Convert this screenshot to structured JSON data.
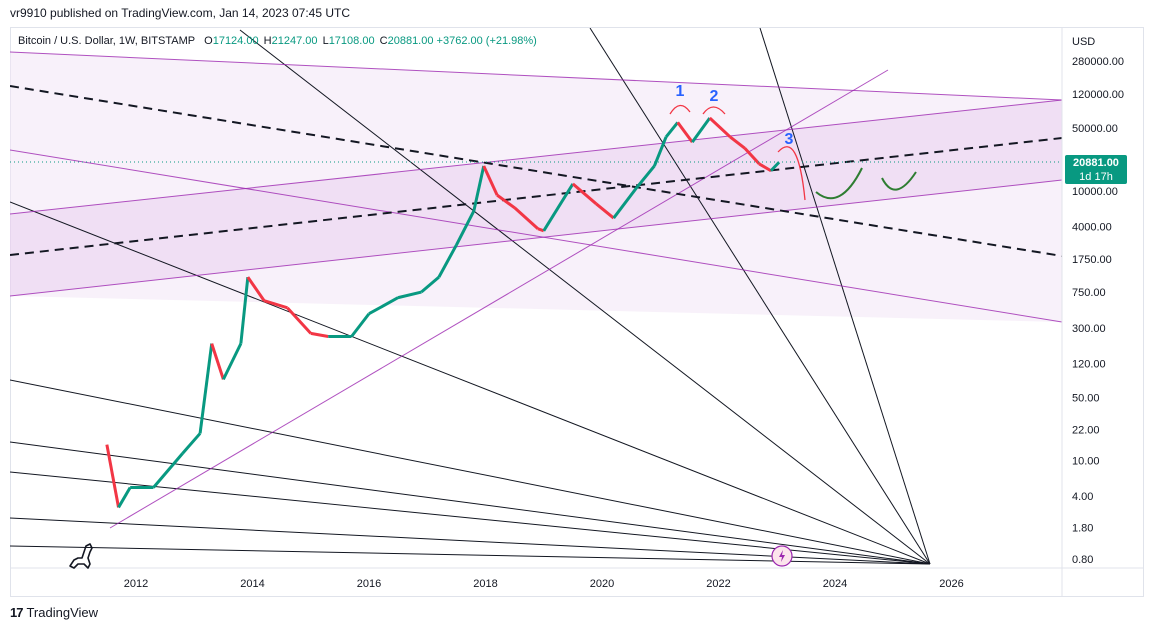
{
  "header": {
    "published": "vr9910 published on TradingView.com, Jan 14, 2023 07:45 UTC"
  },
  "legend": {
    "symbol": "Bitcoin / U.S. Dollar, 1W, BITSTAMP",
    "o_label": "O",
    "o_value": "17124.00",
    "h_label": "H",
    "h_value": "21247.00",
    "l_label": "L",
    "l_value": "17108.00",
    "c_label": "C",
    "c_value": "20881.00",
    "change": "+3762.00 (+21.98%)"
  },
  "price_tag": {
    "price": "20881.00",
    "countdown": "1d 17h"
  },
  "footer": {
    "brand": "TradingView"
  },
  "colors": {
    "up": "#089981",
    "down": "#f23645",
    "channel": "#9c27b0",
    "fan": "#131722",
    "annotation_blue": "#2962ff",
    "annotation_red": "#f23645",
    "annotation_green": "#2e7d32"
  },
  "chart_data": {
    "type": "line",
    "axis_unit": "USD",
    "y_scale": "log",
    "x_ticks": [
      "2012",
      "2014",
      "2016",
      "2018",
      "2020",
      "2022",
      "2024",
      "2026"
    ],
    "y_ticks": [
      "280000.00",
      "120000.00",
      "50000.00",
      "20000.00",
      "10000.00",
      "4000.00",
      "1750.00",
      "750.00",
      "300.00",
      "120.00",
      "50.00",
      "22.00",
      "10.00",
      "4.00",
      "1.80",
      "0.80"
    ],
    "price_series": {
      "x": [
        2011.5,
        2011.7,
        2011.9,
        2012.3,
        2012.8,
        2013.1,
        2013.3,
        2013.5,
        2013.8,
        2013.92,
        2014.2,
        2014.6,
        2015.0,
        2015.3,
        2015.7,
        2016.0,
        2016.5,
        2016.9,
        2017.2,
        2017.5,
        2017.8,
        2017.97,
        2018.2,
        2018.5,
        2018.9,
        2019.0,
        2019.5,
        2019.9,
        2020.2,
        2020.6,
        2020.9,
        2021.1,
        2021.3,
        2021.55,
        2021.85,
        2022.2,
        2022.45,
        2022.7,
        2022.9,
        2023.04
      ],
      "y": [
        15,
        3,
        5,
        5,
        12,
        20,
        200,
        80,
        200,
        1100,
        600,
        500,
        260,
        240,
        240,
        430,
        650,
        750,
        1100,
        2500,
        6000,
        19000,
        9000,
        6500,
        3800,
        3600,
        12000,
        7200,
        5000,
        11000,
        19000,
        40000,
        58000,
        35000,
        65000,
        40000,
        30000,
        20000,
        16800,
        20881
      ]
    },
    "annotations": [
      "1",
      "2",
      "3"
    ],
    "last_price": 20881
  }
}
